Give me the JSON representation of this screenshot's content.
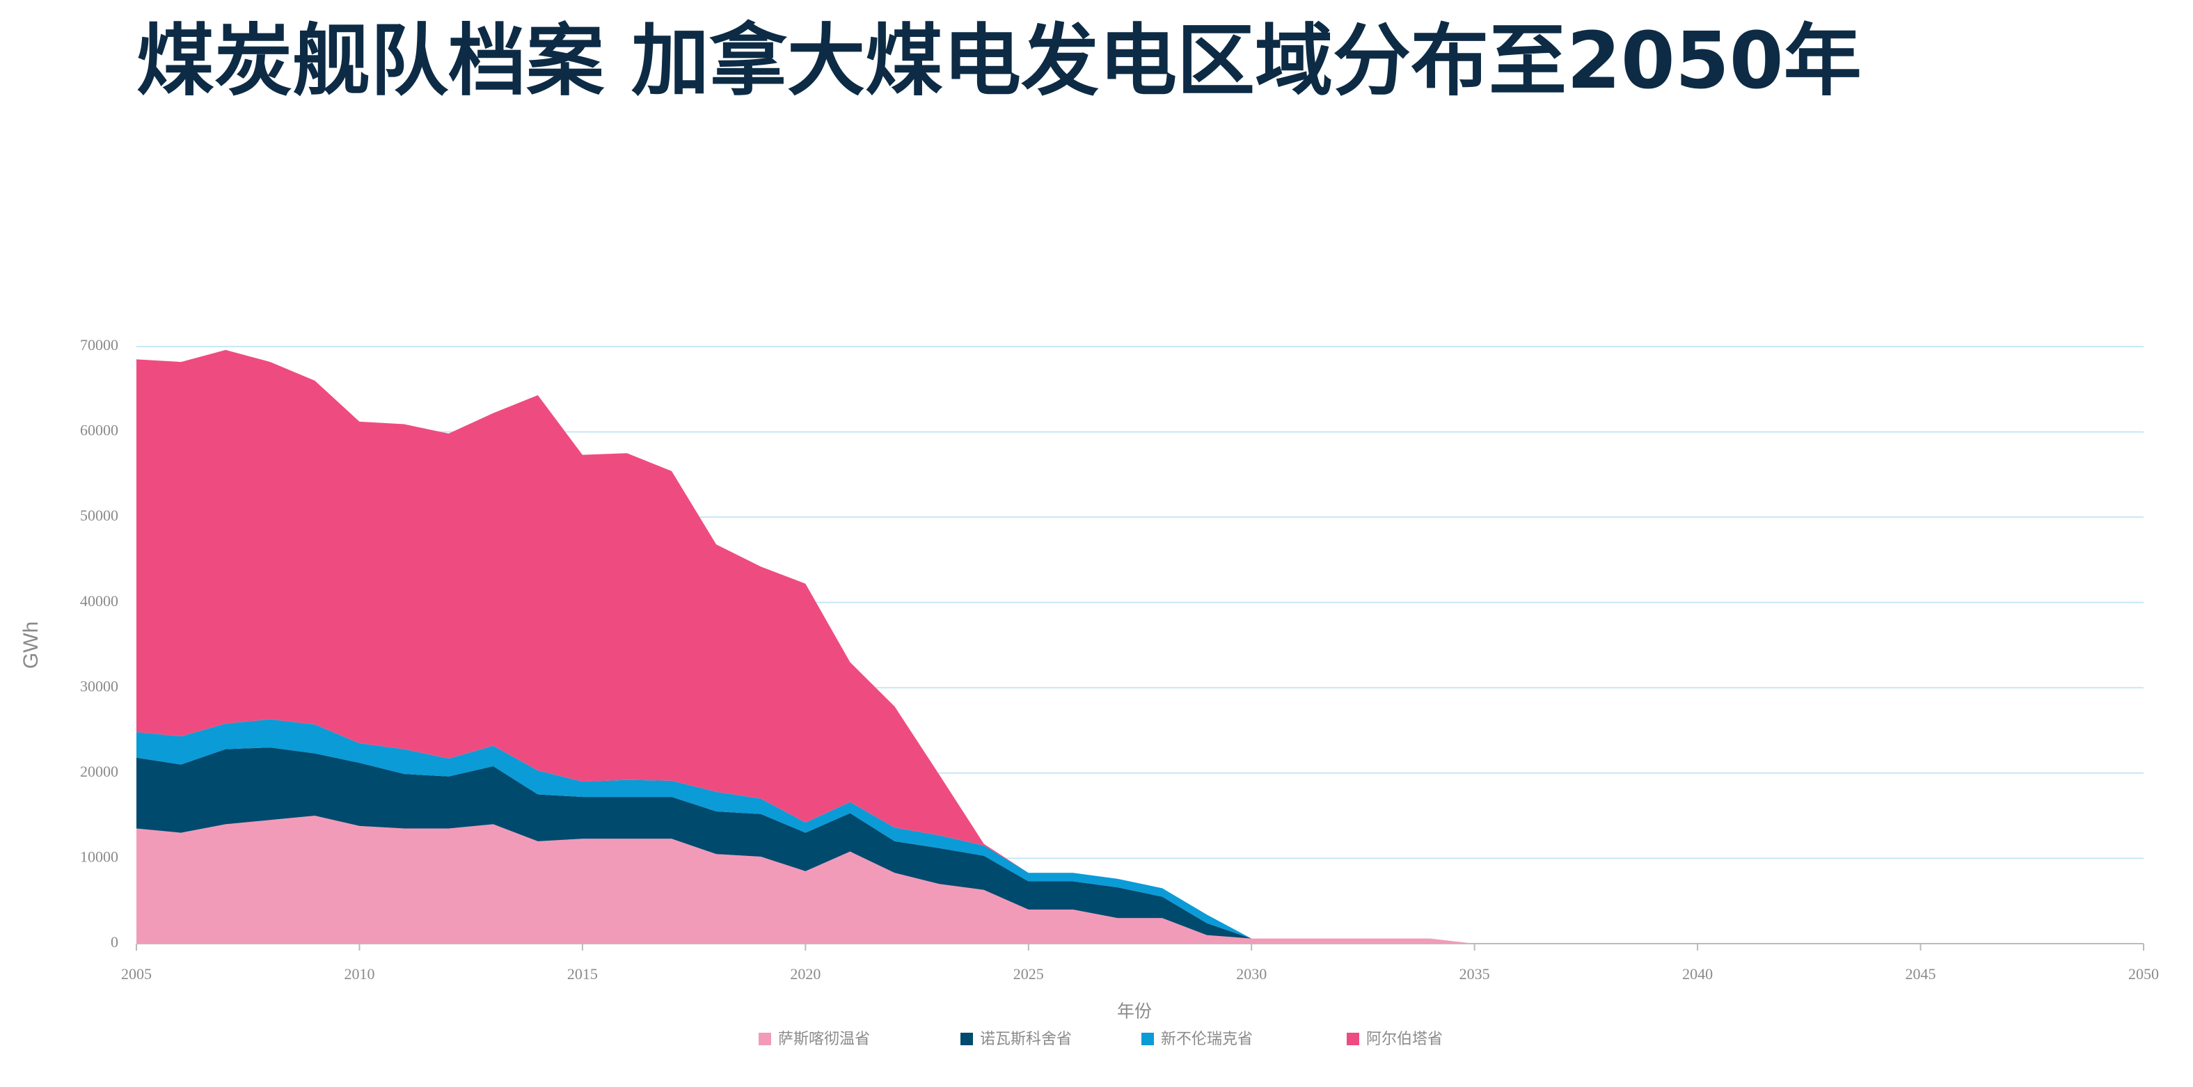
{
  "chart_data": {
    "type": "stacked-area",
    "title": "煤炭舰队档案 加拿大煤电发电区域分布至2050年",
    "y_label": "GWh",
    "x_label": "年份",
    "x": [
      2005,
      2006,
      2007,
      2008,
      2009,
      2010,
      2011,
      2012,
      2013,
      2014,
      2015,
      2016,
      2017,
      2018,
      2019,
      2020,
      2021,
      2022,
      2023,
      2024,
      2025,
      2026,
      2027,
      2028,
      2029,
      2030,
      2031,
      2032,
      2033,
      2034,
      2035,
      2036,
      2037,
      2038,
      2039,
      2040,
      2041,
      2042,
      2043,
      2044,
      2045,
      2046,
      2047,
      2048,
      2049,
      2050
    ],
    "series": [
      {
        "name": "萨斯喀彻温省",
        "color": "#f29bb8",
        "values": [
          13500,
          13000,
          14000,
          14500,
          15000,
          13800,
          13500,
          13500,
          14000,
          12000,
          12300,
          12300,
          12300,
          10500,
          10200,
          8500,
          10800,
          8300,
          7000,
          6300,
          4000,
          4000,
          3000,
          3000,
          1000,
          600,
          600,
          600,
          600,
          600,
          0,
          0,
          0,
          0,
          0,
          0,
          0,
          0,
          0,
          0,
          0,
          0,
          0,
          0,
          0,
          0
        ]
      },
      {
        "name": "诺瓦斯科舍省",
        "color": "#004a6e",
        "values": [
          8300,
          8000,
          8800,
          8500,
          7300,
          7400,
          6400,
          6100,
          6800,
          5500,
          4900,
          4900,
          4900,
          5000,
          5000,
          4500,
          4500,
          3700,
          4200,
          4000,
          3300,
          3300,
          3600,
          2500,
          1400,
          0,
          0,
          0,
          0,
          0,
          0,
          0,
          0,
          0,
          0,
          0,
          0,
          0,
          0,
          0,
          0,
          0,
          0,
          0,
          0,
          0
        ]
      },
      {
        "name": "新不伦瑞克省",
        "color": "#0b9bd7",
        "values": [
          3000,
          3300,
          3000,
          3300,
          3400,
          2300,
          2900,
          2100,
          2400,
          2800,
          1800,
          2000,
          1900,
          2300,
          1800,
          1200,
          1300,
          1600,
          1500,
          1200,
          1000,
          1000,
          1000,
          1000,
          1000,
          0,
          0,
          0,
          0,
          0,
          0,
          0,
          0,
          0,
          0,
          0,
          0,
          0,
          0,
          0,
          0,
          0,
          0,
          0,
          0,
          0
        ]
      },
      {
        "name": "阿尔伯塔省",
        "color": "#ee4c80",
        "values": [
          43700,
          43900,
          43800,
          41900,
          40300,
          37700,
          38100,
          38100,
          39000,
          44000,
          38300,
          38300,
          36300,
          29000,
          27200,
          28000,
          16400,
          14200,
          7100,
          200,
          0,
          0,
          0,
          0,
          0,
          0,
          0,
          0,
          0,
          0,
          0,
          0,
          0,
          0,
          0,
          0,
          0,
          0,
          0,
          0,
          0,
          0,
          0,
          0,
          0,
          0
        ]
      }
    ],
    "xlim": [
      2005,
      2050
    ],
    "xticks": [
      2005,
      2010,
      2015,
      2020,
      2025,
      2030,
      2035,
      2040,
      2045,
      2050
    ],
    "ylim": [
      0,
      70000
    ],
    "yticks": [
      0,
      10000,
      20000,
      30000,
      40000,
      50000,
      60000,
      70000
    ],
    "grid": true,
    "legend": "bottom"
  }
}
